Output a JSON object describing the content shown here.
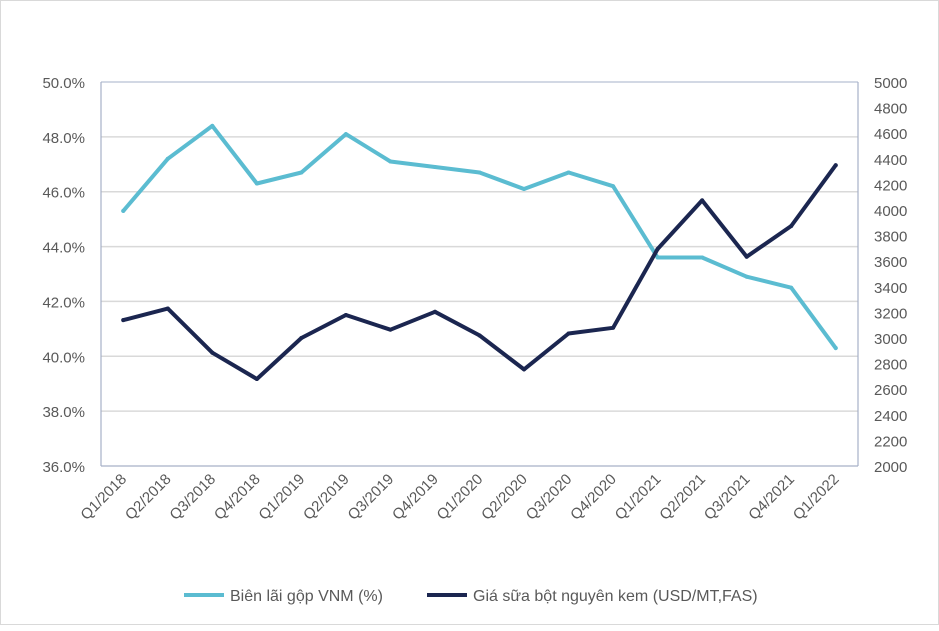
{
  "chart_data": {
    "type": "line",
    "title": "",
    "categories": [
      "Q1/2018",
      "Q2/2018",
      "Q3/2018",
      "Q4/2018",
      "Q1/2019",
      "Q2/2019",
      "Q3/2019",
      "Q4/2019",
      "Q1/2020",
      "Q2/2020",
      "Q3/2020",
      "Q4/2020",
      "Q1/2021",
      "Q2/2021",
      "Q3/2021",
      "Q4/2021",
      "Q1/2022"
    ],
    "left_axis": {
      "ylim": [
        36,
        50
      ],
      "ticks": [
        "36.0%",
        "38.0%",
        "40.0%",
        "42.0%",
        "44.0%",
        "46.0%",
        "48.0%",
        "50.0%"
      ],
      "tick_values": [
        36,
        38,
        40,
        42,
        44,
        46,
        48,
        50
      ]
    },
    "right_axis": {
      "ylim": [
        2000,
        5000
      ],
      "ticks": [
        "2000",
        "2200",
        "2400",
        "2600",
        "2800",
        "3000",
        "3200",
        "3400",
        "3600",
        "3800",
        "4000",
        "4200",
        "4400",
        "4600",
        "4800",
        "5000"
      ],
      "tick_values": [
        2000,
        2200,
        2400,
        2600,
        2800,
        3000,
        3200,
        3400,
        3600,
        3800,
        4000,
        4200,
        4400,
        4600,
        4800,
        5000
      ]
    },
    "grid": true,
    "legend_position": "bottom",
    "series": [
      {
        "name": "Biên lãi gộp VNM (%)",
        "axis": "left",
        "color": "#5bbcd1",
        "values": [
          45.3,
          47.2,
          48.4,
          46.3,
          46.7,
          48.1,
          47.1,
          46.9,
          46.7,
          46.1,
          46.7,
          46.2,
          43.6,
          43.6,
          42.9,
          42.5,
          40.3
        ]
      },
      {
        "name": "Giá sữa bột nguyên kem (USD/MT,FAS)",
        "axis": "right",
        "color": "#1b2650",
        "values": [
          3140,
          3230,
          2885,
          2680,
          3000,
          3180,
          3065,
          3205,
          3020,
          2755,
          3035,
          3080,
          3695,
          4075,
          3635,
          3875,
          4350
        ]
      }
    ]
  }
}
